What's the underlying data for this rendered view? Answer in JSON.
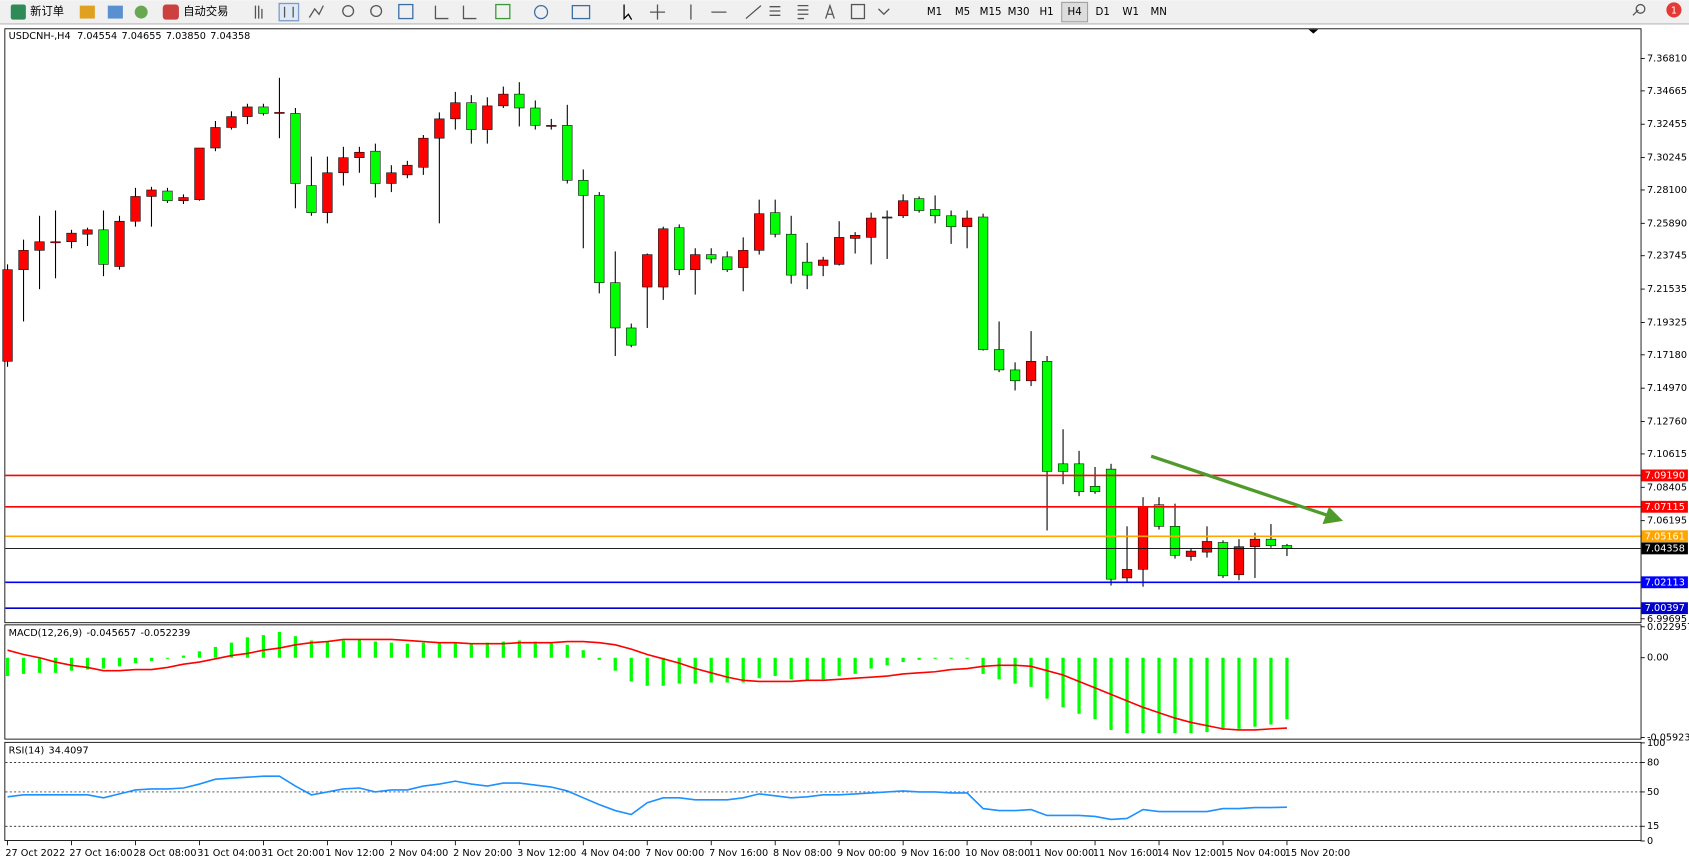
{
  "toolbar": {
    "new_order": "新订单",
    "auto_trading": "自动交易",
    "timeframes": [
      "M1",
      "M5",
      "M15",
      "M30",
      "H1",
      "H4",
      "D1",
      "W1",
      "MN"
    ],
    "active_timeframe": "H4",
    "notifications": 1
  },
  "chart_data": [
    {
      "type": "candlestick",
      "title": "USDCNH-,H4",
      "categories": [
        "27 Oct 2022",
        null,
        null,
        null,
        "27 Oct 16:00",
        null,
        null,
        null,
        "28 Oct 08:00",
        null,
        null,
        null,
        "31 Oct 04:00",
        null,
        null,
        null,
        "31 Oct 20:00",
        null,
        null,
        null,
        "1 Nov 12:00",
        null,
        null,
        null,
        "2 Nov 04:00",
        null,
        null,
        null,
        "2 Nov 20:00",
        null,
        null,
        null,
        "3 Nov 12:00",
        null,
        null,
        null,
        "4 Nov 04:00",
        null,
        null,
        null,
        "7 Nov 00:00",
        null,
        null,
        null,
        "7 Nov 16:00",
        null,
        null,
        null,
        "8 Nov 08:00",
        null,
        null,
        null,
        "9 Nov 00:00",
        null,
        null,
        null,
        "9 Nov 16:00",
        null,
        null,
        null,
        "10 Nov 08:00",
        null,
        null,
        null,
        "11 Nov 00:00",
        null,
        null,
        null,
        "11 Nov 16:00",
        null,
        null,
        null,
        "14 Nov 12:00",
        null,
        null,
        null,
        "15 Nov 04:00",
        null,
        null,
        null,
        "15 Nov 20:00"
      ],
      "open": [
        7.1675,
        7.2282,
        7.241,
        7.2467,
        7.2467,
        7.2517,
        7.2546,
        7.2303,
        7.2603,
        7.2767,
        7.2803,
        7.2739,
        7.2746,
        7.3088,
        7.3224,
        7.3296,
        7.336,
        7.3324,
        7.3317,
        7.2839,
        7.266,
        7.2924,
        7.3024,
        7.3067,
        7.2853,
        7.291,
        7.296,
        7.3153,
        7.3281,
        7.3388,
        7.321,
        7.3367,
        7.3445,
        7.3353,
        7.3238,
        7.3238,
        7.2874,
        7.2774,
        7.2196,
        7.1896,
        7.2167,
        7.2167,
        7.256,
        7.2282,
        7.2382,
        7.2367,
        7.2296,
        7.241,
        7.266,
        7.2517,
        7.2332,
        7.231,
        7.2317,
        7.2489,
        7.2496,
        7.2631,
        7.2639,
        7.2753,
        7.2681,
        7.2639,
        7.2567,
        7.2631,
        7.1753,
        7.1618,
        7.1546,
        7.1675,
        7.0996,
        7.0996,
        7.0847,
        7.0961,
        7.024,
        7.0297,
        7.0725,
        7.0582,
        7.0382,
        7.0411,
        7.0475,
        7.0261,
        7.0447,
        7.0497,
        7.04554
      ],
      "high": [
        7.2317,
        7.2481,
        7.2639,
        7.2674,
        7.2546,
        7.256,
        7.2674,
        7.2639,
        7.2824,
        7.2831,
        7.2824,
        7.2781,
        7.3088,
        7.3267,
        7.3331,
        7.3381,
        7.3381,
        7.3553,
        7.3353,
        7.3031,
        7.3031,
        7.3096,
        7.3096,
        7.3117,
        7.2974,
        7.3003,
        7.3174,
        7.3324,
        7.346,
        7.3438,
        7.3424,
        7.3495,
        7.3524,
        7.3403,
        7.3281,
        7.3374,
        7.2946,
        7.2796,
        7.2403,
        7.1925,
        7.2389,
        7.2567,
        7.2582,
        7.2424,
        7.2424,
        7.2403,
        7.2496,
        7.2746,
        7.2746,
        7.2639,
        7.246,
        7.2367,
        7.2603,
        7.2531,
        7.266,
        7.2674,
        7.2781,
        7.2767,
        7.2774,
        7.2674,
        7.2674,
        7.2653,
        7.1939,
        7.1668,
        7.1875,
        7.171,
        7.1225,
        7.1082,
        7.0975,
        7.0996,
        7.0582,
        7.0775,
        7.0775,
        7.0732,
        7.0432,
        7.0582,
        7.0489,
        7.0497,
        7.0539,
        7.0597,
        7.04655
      ],
      "low": [
        7.1639,
        7.1939,
        7.2153,
        7.2225,
        7.2424,
        7.2439,
        7.2239,
        7.2282,
        7.2567,
        7.2567,
        7.2724,
        7.2717,
        7.2739,
        7.3067,
        7.321,
        7.3246,
        7.3303,
        7.3153,
        7.2689,
        7.2639,
        7.2589,
        7.2839,
        7.2924,
        7.276,
        7.2796,
        7.2888,
        7.291,
        7.2589,
        7.321,
        7.3117,
        7.3117,
        7.3353,
        7.3231,
        7.321,
        7.321,
        7.2853,
        7.2424,
        7.2125,
        7.171,
        7.1768,
        7.1896,
        7.2082,
        7.2246,
        7.2117,
        7.2324,
        7.2267,
        7.2139,
        7.2382,
        7.2496,
        7.2189,
        7.2153,
        7.2239,
        7.231,
        7.2389,
        7.2317,
        7.2353,
        7.2624,
        7.266,
        7.2589,
        7.2453,
        7.2424,
        7.1746,
        7.1603,
        7.1482,
        7.1511,
        7.0554,
        7.0861,
        7.0782,
        7.0797,
        7.019,
        7.0211,
        7.0182,
        7.0561,
        7.0368,
        7.0354,
        7.0375,
        7.024,
        7.0225,
        7.024,
        7.044,
        7.0385
      ],
      "low_labels": [
        null,
        null,
        null,
        null,
        null,
        null,
        null,
        null,
        null,
        null,
        null,
        null,
        null,
        null,
        null,
        null,
        null,
        null,
        null,
        null,
        null,
        null,
        null,
        null,
        null,
        null,
        null,
        null,
        null,
        null,
        null,
        null,
        null,
        null,
        null,
        null,
        null,
        null,
        null,
        null,
        null,
        null,
        null,
        null,
        null,
        null,
        null,
        null,
        null,
        null,
        null,
        null,
        null,
        null,
        null,
        null,
        null,
        null,
        null,
        null,
        null,
        null,
        null,
        null,
        null,
        null,
        null,
        null,
        null,
        null,
        null,
        null,
        null,
        null,
        null,
        null,
        null,
        null,
        null,
        null,
        "7.03850"
      ],
      "close": [
        7.2282,
        7.241,
        7.2467,
        7.2467,
        7.2524,
        7.2546,
        7.2317,
        7.2603,
        7.2767,
        7.281,
        7.2739,
        7.276,
        7.3088,
        7.3224,
        7.3296,
        7.336,
        7.3317,
        7.3324,
        7.2853,
        7.266,
        7.2924,
        7.3024,
        7.306,
        7.2853,
        7.2924,
        7.2974,
        7.3153,
        7.3281,
        7.3388,
        7.321,
        7.3367,
        7.3445,
        7.3353,
        7.3238,
        7.3238,
        7.2874,
        7.2774,
        7.2196,
        7.1896,
        7.1782,
        7.2382,
        7.2553,
        7.2282,
        7.2382,
        7.2353,
        7.2282,
        7.241,
        7.2653,
        7.2517,
        7.2246,
        7.2246,
        7.2346,
        7.2496,
        7.251,
        7.2624,
        7.2631,
        7.2739,
        7.2674,
        7.2639,
        7.2567,
        7.2624,
        7.1753,
        7.1618,
        7.1546,
        7.1675,
        7.0946,
        7.0946,
        7.0811,
        7.0811,
        7.0232,
        7.0297,
        7.0711,
        7.0582,
        7.039,
        7.0418,
        7.0482,
        7.0254,
        7.0447,
        7.0497,
        7.0454,
        7.04358
      ],
      "up_color": "#ff0000",
      "down_color": "#00ff00",
      "ylim": [
        6.994,
        7.3874
      ],
      "yticks": [
        {
          "value": 7.3681,
          "label": "7.36810"
        },
        7.34665,
        7.32455,
        7.30245,
        {
          "value": 7.281,
          "label": "7.28100"
        },
        {
          "value": 7.2589,
          "label": "7.25890"
        },
        7.23745,
        7.21535,
        7.19325,
        {
          "value": 7.1718,
          "label": "7.17180"
        },
        {
          "value": 7.1497,
          "label": "7.14970"
        },
        {
          "value": 7.1276,
          "label": "7.12760"
        },
        7.10615,
        7.08405,
        7.06195,
        6.99695
      ],
      "levels": [
        {
          "value": 7.0919,
          "label": "7.09190",
          "color": "#ff0000"
        },
        {
          "value": 7.07115,
          "color": "#ff0000"
        },
        {
          "value": 7.05161,
          "color": "#ffa500"
        },
        {
          "value": 7.02113,
          "color": "#0000ff"
        },
        {
          "value": 7.00397,
          "color": "#0000cc"
        }
      ]
    },
    {
      "type": "macd",
      "title": "MACD(12,26,9)",
      "macd": [
        -0.0136,
        -0.012,
        -0.0112,
        -0.0112,
        -0.0096,
        -0.0088,
        -0.008,
        -0.0064,
        -0.004,
        -0.0024,
        -0.0008,
        0.0016,
        0.0048,
        0.008,
        0.0112,
        0.0152,
        0.0168,
        0.0192,
        0.016,
        0.0128,
        0.012,
        0.0128,
        0.0136,
        0.012,
        0.0112,
        0.0104,
        0.0112,
        0.0112,
        0.0112,
        0.0104,
        0.0112,
        0.012,
        0.0128,
        0.012,
        0.0112,
        0.0096,
        0.0056,
        -0.0016,
        -0.0096,
        -0.0176,
        -0.0208,
        -0.0208,
        -0.0192,
        -0.0192,
        -0.0184,
        -0.0184,
        -0.0184,
        -0.0152,
        -0.0136,
        -0.016,
        -0.0168,
        -0.016,
        -0.0136,
        -0.012,
        -0.008,
        -0.0056,
        -0.0032,
        -0.0016,
        -0.0008,
        -0.0008,
        -0.0008,
        -0.012,
        -0.016,
        -0.0192,
        -0.0216,
        -0.0304,
        -0.0368,
        -0.0416,
        -0.0456,
        -0.0536,
        -0.056,
        -0.056,
        -0.056,
        -0.056,
        -0.056,
        -0.0552,
        -0.0536,
        -0.0528,
        -0.0512,
        -0.0496,
        -0.045657
      ],
      "signal": [
        0.0056,
        0.0024,
        0,
        -0.0032,
        -0.0056,
        -0.0072,
        -0.0096,
        -0.0096,
        -0.0088,
        -0.0088,
        -0.0072,
        -0.0048,
        -0.0032,
        -0.0008,
        0.0016,
        0.0032,
        0.0056,
        0.0072,
        0.0096,
        0.0112,
        0.012,
        0.0136,
        0.0136,
        0.0136,
        0.0136,
        0.0128,
        0.012,
        0.0112,
        0.0112,
        0.0104,
        0.0104,
        0.0104,
        0.0112,
        0.0112,
        0.0112,
        0.012,
        0.012,
        0.0112,
        0.0096,
        0.0064,
        0.0024,
        -0.0008,
        -0.004,
        -0.008,
        -0.0112,
        -0.0144,
        -0.0168,
        -0.0176,
        -0.0176,
        -0.0176,
        -0.0168,
        -0.0168,
        -0.016,
        -0.0152,
        -0.0144,
        -0.0136,
        -0.012,
        -0.0112,
        -0.0104,
        -0.0088,
        -0.008,
        -0.0064,
        -0.0056,
        -0.0056,
        -0.0064,
        -0.0096,
        -0.0128,
        -0.0176,
        -0.0224,
        -0.0272,
        -0.032,
        -0.0368,
        -0.0408,
        -0.0448,
        -0.048,
        -0.0504,
        -0.0528,
        -0.0536,
        -0.0536,
        -0.0528,
        -0.052239
      ],
      "macd_color": "#00ff00",
      "signal_color": "#ff0000",
      "ylim": [
        -0.0608,
        0.024
      ],
      "yticks": [
        0.022957,
        {
          "value": 0,
          "label": "0.00"
        },
        -0.059235
      ]
    },
    {
      "type": "rsi",
      "title": "RSI(14)",
      "values": [
        45,
        47,
        47,
        47,
        47,
        47,
        44,
        48,
        52,
        53,
        53,
        54,
        58,
        63,
        64,
        65,
        66,
        66,
        56,
        47,
        50,
        53,
        54,
        50,
        52,
        52,
        56,
        58,
        61,
        58,
        56,
        59,
        59,
        57,
        55,
        51,
        44,
        37,
        31,
        27,
        39,
        44,
        44,
        42,
        42,
        42,
        44,
        48,
        46,
        44,
        45,
        47,
        47,
        48,
        49,
        50,
        51,
        50,
        50,
        49,
        49,
        33,
        31,
        31,
        32,
        26,
        26,
        26,
        25,
        22,
        23,
        32,
        30,
        30,
        30,
        30,
        33,
        33,
        34,
        34,
        34.4097
      ],
      "color": "#1e90ff",
      "grid": true,
      "ylim": [
        0,
        100
      ],
      "yticks": [
        100,
        80,
        50,
        15,
        0
      ]
    }
  ]
}
